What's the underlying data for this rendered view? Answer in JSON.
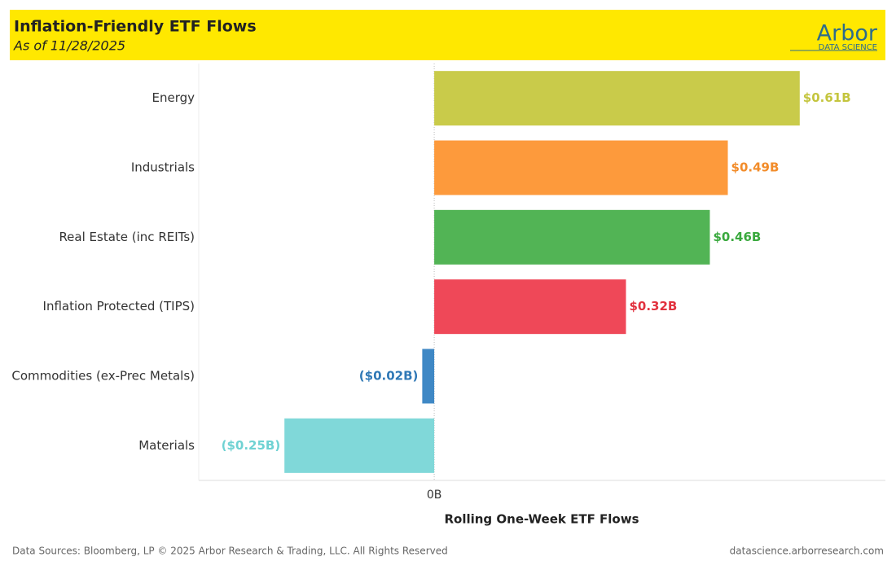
{
  "chart_data": {
    "type": "bar",
    "orientation": "horizontal",
    "title": "Inflation-Friendly ETF Flows",
    "subtitle": "As of 11/28/2025",
    "categories": [
      "Energy",
      "Industrials",
      "Real Estate (inc REITs)",
      "Inflation Protected (TIPS)",
      "Commodities (ex-Prec Metals)",
      "Materials"
    ],
    "values": [
      0.61,
      0.49,
      0.46,
      0.32,
      -0.02,
      -0.25
    ],
    "value_labels": [
      "$0.61B",
      "$0.49B",
      "$0.46B",
      "$0.32B",
      "($0.02B)",
      "($0.25B)"
    ],
    "colors": [
      "#c9cb4a",
      "#fd9a3c",
      "#52b455",
      "#ef4858",
      "#3f88c5",
      "#80d8d9"
    ],
    "label_colors": [
      "#c4c53e",
      "#f28c2a",
      "#3aa93e",
      "#e2323f",
      "#2f78b6",
      "#6fd2d3"
    ],
    "xlim": [
      -0.393,
      0.753
    ],
    "xticks": [
      {
        "value": 0,
        "label": "0B"
      }
    ],
    "x_label": "Rolling One-Week ETF Flows"
  },
  "logo": {
    "name": "Arbor",
    "tagline": "DATA SCIENCE"
  },
  "footer": {
    "sources": "Data Sources: Bloomberg, LP © 2025 Arbor Research & Trading, LLC. All Rights Reserved",
    "site": "datascience.arborresearch.com"
  }
}
